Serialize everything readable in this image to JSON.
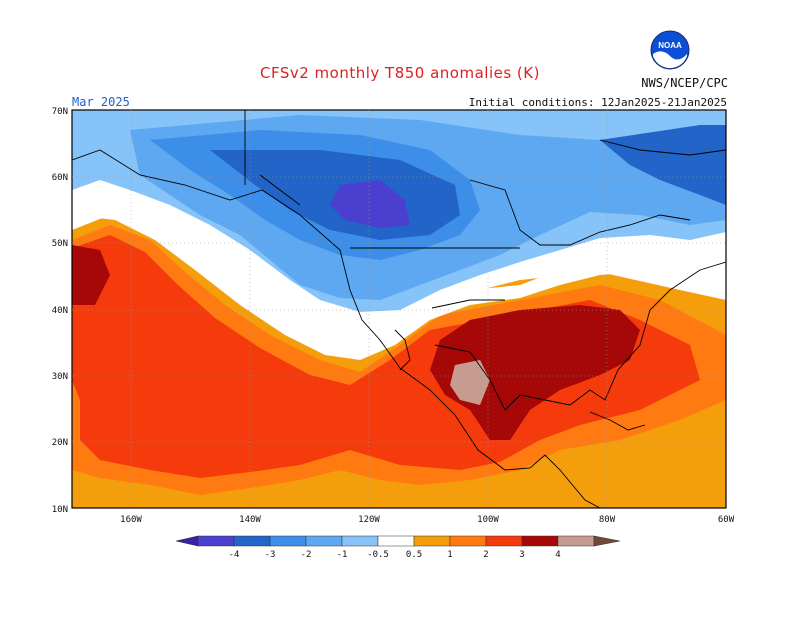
{
  "header": {
    "title": "CFSv2 monthly T850 anomalies (K)",
    "agency": "NWS/NCEP/CPC",
    "month": "Mar 2025",
    "initial_conditions": "Initial conditions: 12Jan2025-21Jan2025"
  },
  "logo": {
    "icon": "noaa-logo-icon",
    "text": "NOAA"
  },
  "axes": {
    "lat_labels": [
      "70N",
      "60N",
      "50N",
      "40N",
      "30N",
      "20N",
      "10N"
    ],
    "lon_labels": [
      "160W",
      "140W",
      "120W",
      "100W",
      "80W",
      "60W"
    ]
  },
  "colorbar": {
    "ticks": [
      "-4",
      "-3",
      "-2",
      "-1",
      "-0.5",
      "0.5",
      "1",
      "2",
      "3",
      "4"
    ],
    "colors": [
      "#3a1fa8",
      "#4a3fcf",
      "#2264c8",
      "#3c8ee8",
      "#5ea8f2",
      "#85c3f8",
      "#ffffff",
      "#f59e0b",
      "#ff7a10",
      "#f53b0c",
      "#a60707",
      "#c79c90",
      "#73483b"
    ]
  },
  "chart_data": {
    "type": "heatmap",
    "title": "CFSv2 monthly T850 anomalies (K)",
    "units": "K",
    "lat_range": [
      "10N",
      "70N"
    ],
    "lon_range": [
      "170W",
      "60W"
    ]
  }
}
